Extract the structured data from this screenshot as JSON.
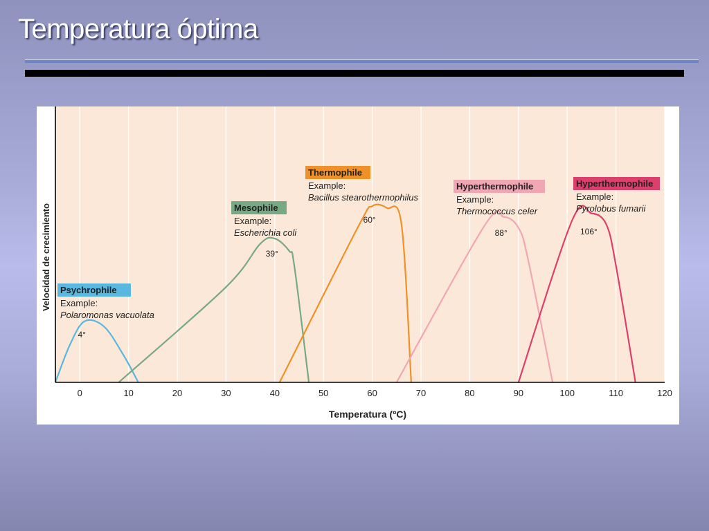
{
  "slide": {
    "title": "Temperatura óptima"
  },
  "colors": {
    "plot_background": "#fbe8d8",
    "grid": "#ffffff",
    "psychrophile": "#5ab7df",
    "mesophile": "#77a985",
    "thermophile": "#ef9128",
    "hyperthermophile_1": "#f1a6b4",
    "hyperthermophile_2": "#dc3f6b"
  },
  "chart_data": {
    "type": "line",
    "xlabel": "Temperatura (ºC)",
    "ylabel": "Velocidad de crecimiento",
    "xlim": [
      -5,
      120
    ],
    "ylim": [
      0,
      100
    ],
    "x_ticks": [
      "0",
      "10",
      "20",
      "30",
      "40",
      "50",
      "60",
      "70",
      "80",
      "90",
      "100",
      "110",
      "120"
    ],
    "y_ticks": [],
    "grid": true,
    "series": [
      {
        "name": "Psychrophile",
        "example_label": "Example:",
        "example": "Polaromonas vacuolata",
        "optimum_label": "4°",
        "color": "#5ab7df",
        "points": [
          [
            -5,
            0
          ],
          [
            -2,
            21
          ],
          [
            1,
            34
          ],
          [
            5,
            31
          ],
          [
            9,
            15
          ],
          [
            12,
            0
          ]
        ]
      },
      {
        "name": "Mesophile",
        "example_label": "Example:",
        "example": "Escherichia coli",
        "optimum_label": "39°",
        "color": "#77a985",
        "points": [
          [
            8,
            0
          ],
          [
            30,
            53
          ],
          [
            37,
            77
          ],
          [
            40,
            80
          ],
          [
            43,
            73
          ],
          [
            44,
            65
          ],
          [
            47,
            0
          ]
        ]
      },
      {
        "name": "Thermophile",
        "example_label": "Example:",
        "example": "Bacillus stearothermophilus",
        "optimum_label": "60°",
        "color": "#ef9128",
        "points": [
          [
            41,
            0
          ],
          [
            57,
            86
          ],
          [
            60,
            98
          ],
          [
            63,
            97
          ],
          [
            66,
            88
          ],
          [
            68,
            0
          ]
        ]
      },
      {
        "name": "Hyperthermophile",
        "example_label": "Example:",
        "example": "Thermococcus celer",
        "optimum_label": "88°",
        "color": "#f1a6b4",
        "points": [
          [
            65,
            0
          ],
          [
            83,
            87
          ],
          [
            87,
            92
          ],
          [
            90,
            86
          ],
          [
            92,
            68
          ],
          [
            97,
            0
          ]
        ]
      },
      {
        "name": "Hyperthermophile",
        "example_label": "Example:",
        "example": "Pyrolobus fumarii",
        "optimum_label": "106°",
        "color": "#dc3f6b",
        "points": [
          [
            90,
            0
          ],
          [
            101,
            90
          ],
          [
            105,
            94
          ],
          [
            108,
            88
          ],
          [
            110,
            65
          ],
          [
            114,
            0
          ]
        ]
      }
    ]
  }
}
